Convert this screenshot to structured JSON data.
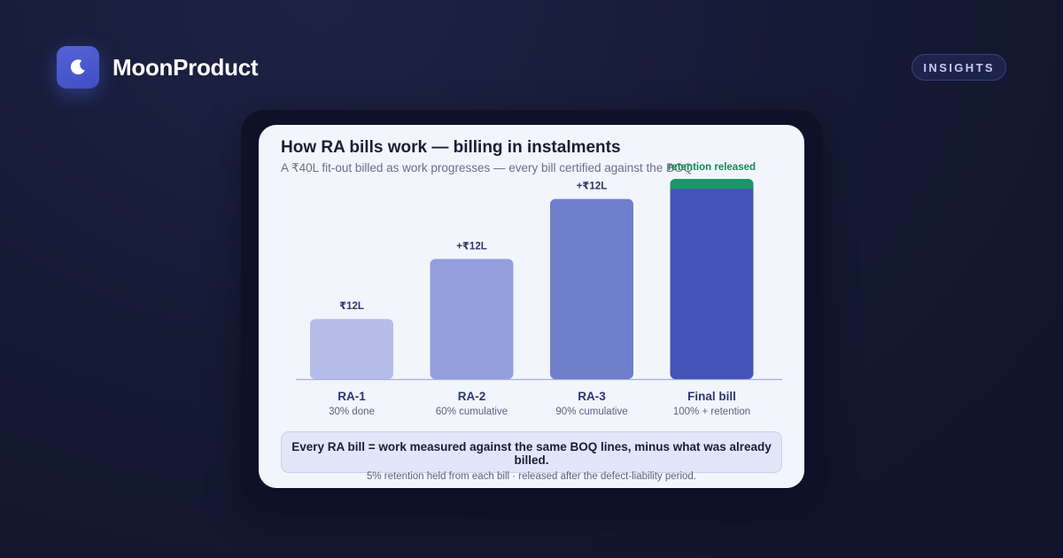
{
  "brand": {
    "name": "MoonProduct",
    "icon": "moon-icon"
  },
  "badge": {
    "label": "INSIGHTS"
  },
  "card": {
    "title": "How RA bills work — billing in instalments",
    "subtitle": "A ₹40L fit-out billed as work progresses — every bill certified against the BOQ",
    "footer_main": "Every RA bill = work measured against the same BOQ lines, minus what was already billed.",
    "footer_note": "5% retention held from each bill · released after the defect-liability period."
  },
  "colors": {
    "bar_1": "#b5bde8",
    "bar_2": "#929fdc",
    "bar_3": "#6f7fcc",
    "bar_final": "#4353b8",
    "retention": "#1c9669",
    "retention_text": "#138a4f",
    "value_text": "#2d3670",
    "category_text": "#2d3670",
    "baseline": "#a7afd6"
  },
  "chart_data": {
    "type": "bar",
    "stacked": true,
    "categories": [
      "RA-1",
      "RA-2",
      "RA-3",
      "Final bill"
    ],
    "category_sublabels": [
      "30% done",
      "60% cumulative",
      "90% cumulative",
      "100% + retention"
    ],
    "values": [
      12,
      24,
      36,
      40
    ],
    "increment_labels": [
      "₹12L",
      "+₹12L",
      "+₹12L",
      ""
    ],
    "retention": {
      "label": "retention released",
      "value": 2,
      "category": "Final bill"
    },
    "ylim": [
      0,
      40
    ],
    "title": "How RA bills work — billing in instalments",
    "xlabel": "",
    "ylabel": "",
    "grid": false
  }
}
